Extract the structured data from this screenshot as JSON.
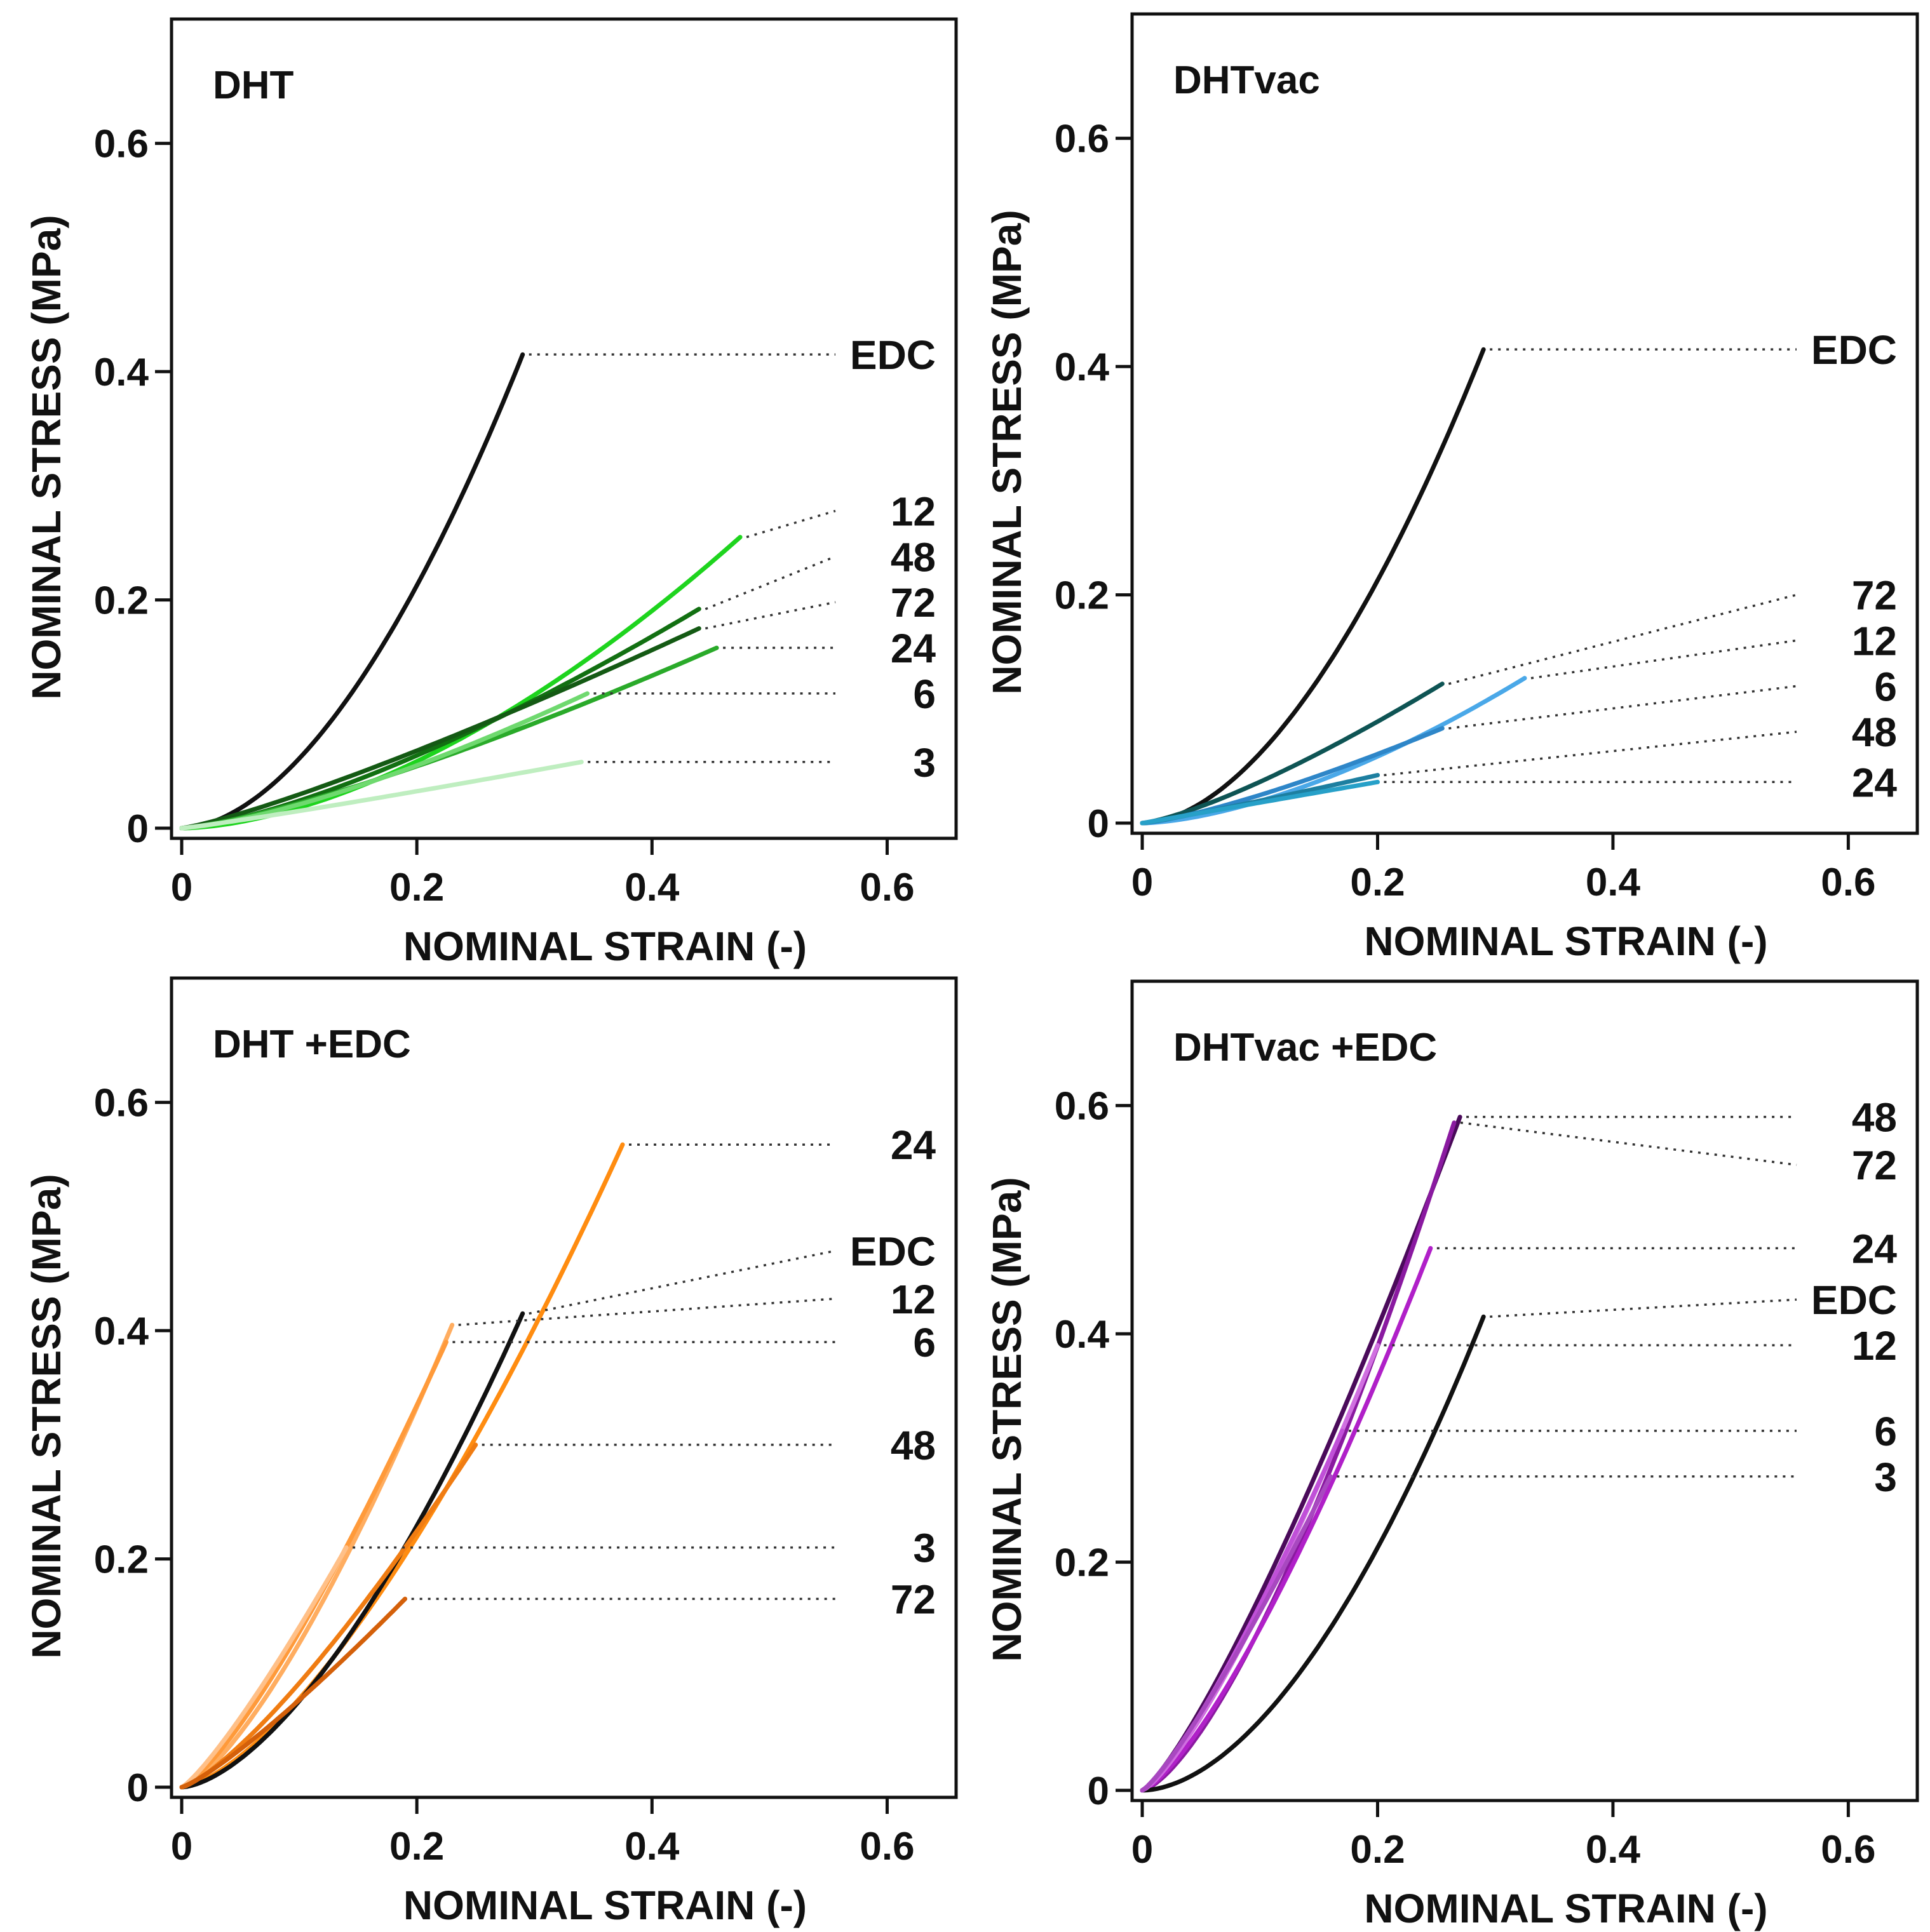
{
  "chart_data": [
    {
      "type": "line",
      "title": "DHT",
      "xlabel": "NOMINAL STRAIN (-)",
      "ylabel": "NOMINAL STRESS (MPa)",
      "xlim": [
        0,
        0.65
      ],
      "ylim": [
        0,
        0.7
      ],
      "x_ticks": [
        "0",
        "0.2",
        "0.4",
        "0.6"
      ],
      "y_ticks": [
        "0",
        "0.2",
        "0.4",
        "0.6"
      ],
      "series": [
        {
          "name": "EDC",
          "color": "#111111",
          "end": [
            0.29,
            0.415
          ],
          "curve": 1.8,
          "label_y": 0.415
        },
        {
          "name": "12",
          "color": "#1ed41e",
          "end": [
            0.475,
            0.255
          ],
          "curve": 1.7,
          "label_y": 0.278
        },
        {
          "name": "48",
          "color": "#127012",
          "end": [
            0.44,
            0.192
          ],
          "curve": 1.4,
          "label_y": 0.238
        },
        {
          "name": "72",
          "color": "#145a14",
          "end": [
            0.44,
            0.175
          ],
          "curve": 1.2,
          "label_y": 0.198
        },
        {
          "name": "24",
          "color": "#2aaa2a",
          "end": [
            0.455,
            0.158
          ],
          "curve": 1.3,
          "label_y": 0.158
        },
        {
          "name": "6",
          "color": "#6fd96f",
          "end": [
            0.345,
            0.118
          ],
          "curve": 1.4,
          "label_y": 0.118
        },
        {
          "name": "3",
          "color": "#bfeec0",
          "end": [
            0.34,
            0.058
          ],
          "curve": 1.1,
          "label_y": 0.058
        }
      ]
    },
    {
      "type": "line",
      "title": "DHTvac",
      "xlabel": "NOMINAL STRAIN (-)",
      "ylabel": "NOMINAL STRESS (MPa)",
      "xlim": [
        0,
        0.65
      ],
      "ylim": [
        0,
        0.7
      ],
      "x_ticks": [
        "0",
        "0.2",
        "0.4",
        "0.6"
      ],
      "y_ticks": [
        "0",
        "0.2",
        "0.4",
        "0.6"
      ],
      "series": [
        {
          "name": "EDC",
          "color": "#111111",
          "end": [
            0.29,
            0.415
          ],
          "curve": 1.8,
          "label_y": 0.415
        },
        {
          "name": "72",
          "color": "#0e5454",
          "end": [
            0.255,
            0.122
          ],
          "curve": 1.3,
          "label_y": 0.2
        },
        {
          "name": "12",
          "color": "#4aa8e8",
          "end": [
            0.325,
            0.127
          ],
          "curve": 1.6,
          "label_y": 0.16
        },
        {
          "name": "6",
          "color": "#2e86c8",
          "end": [
            0.255,
            0.083
          ],
          "curve": 1.3,
          "label_y": 0.12
        },
        {
          "name": "48",
          "color": "#1d7fa0",
          "end": [
            0.2,
            0.042
          ],
          "curve": 1.1,
          "label_y": 0.08
        },
        {
          "name": "24",
          "color": "#27a0c8",
          "end": [
            0.2,
            0.036
          ],
          "curve": 1.0,
          "label_y": 0.036
        }
      ]
    },
    {
      "type": "line",
      "title": "DHT +EDC",
      "xlabel": "NOMINAL STRAIN (-)",
      "ylabel": "NOMINAL STRESS (MPa)",
      "xlim": [
        0,
        0.65
      ],
      "ylim": [
        0,
        0.7
      ],
      "x_ticks": [
        "0",
        "0.2",
        "0.4",
        "0.6"
      ],
      "y_ticks": [
        "0",
        "0.2",
        "0.4",
        "0.6"
      ],
      "series": [
        {
          "name": "24",
          "color": "#ff8c10",
          "end": [
            0.375,
            0.563
          ],
          "curve": 1.5,
          "label_y": 0.563
        },
        {
          "name": "EDC",
          "color": "#111111",
          "end": [
            0.29,
            0.415
          ],
          "curve": 1.6,
          "label_y": 0.47
        },
        {
          "name": "12",
          "color": "#ffad60",
          "end": [
            0.23,
            0.405
          ],
          "curve": 1.4,
          "label_y": 0.428
        },
        {
          "name": "6",
          "color": "#ff9a3a",
          "end": [
            0.225,
            0.39
          ],
          "curve": 1.3,
          "label_y": 0.39
        },
        {
          "name": "48",
          "color": "#f07c12",
          "end": [
            0.25,
            0.3
          ],
          "curve": 1.3,
          "label_y": 0.3
        },
        {
          "name": "3",
          "color": "#ffc088",
          "end": [
            0.14,
            0.21
          ],
          "curve": 1.2,
          "label_y": 0.21
        },
        {
          "name": "72",
          "color": "#d4600a",
          "end": [
            0.19,
            0.165
          ],
          "curve": 1.2,
          "label_y": 0.165
        }
      ]
    },
    {
      "type": "line",
      "title": "DHTvac +EDC",
      "xlabel": "NOMINAL STRAIN (-)",
      "ylabel": "NOMINAL STRESS (MPa)",
      "xlim": [
        0,
        0.65
      ],
      "ylim": [
        0,
        0.7
      ],
      "x_ticks": [
        "0",
        "0.2",
        "0.4",
        "0.6"
      ],
      "y_ticks": [
        "0",
        "0.2",
        "0.4",
        "0.6"
      ],
      "series": [
        {
          "name": "48",
          "color": "#4a0a5a",
          "end": [
            0.27,
            0.59
          ],
          "curve": 1.25,
          "label_y": 0.59
        },
        {
          "name": "72",
          "color": "#8a1aa0",
          "end": [
            0.265,
            0.585
          ],
          "curve": 1.45,
          "label_y": 0.548
        },
        {
          "name": "24",
          "color": "#b020c8",
          "end": [
            0.245,
            0.475
          ],
          "curve": 1.35,
          "label_y": 0.475
        },
        {
          "name": "EDC",
          "color": "#111111",
          "end": [
            0.29,
            0.415
          ],
          "curve": 1.8,
          "label_y": 0.43
        },
        {
          "name": "12",
          "color": "#d070e0",
          "end": [
            0.2,
            0.39
          ],
          "curve": 1.3,
          "label_y": 0.39
        },
        {
          "name": "6",
          "color": "#c050d8",
          "end": [
            0.17,
            0.315
          ],
          "curve": 1.25,
          "label_y": 0.315
        },
        {
          "name": "3",
          "color": "#a848c0",
          "end": [
            0.16,
            0.275
          ],
          "curve": 1.2,
          "label_y": 0.275
        }
      ]
    }
  ]
}
